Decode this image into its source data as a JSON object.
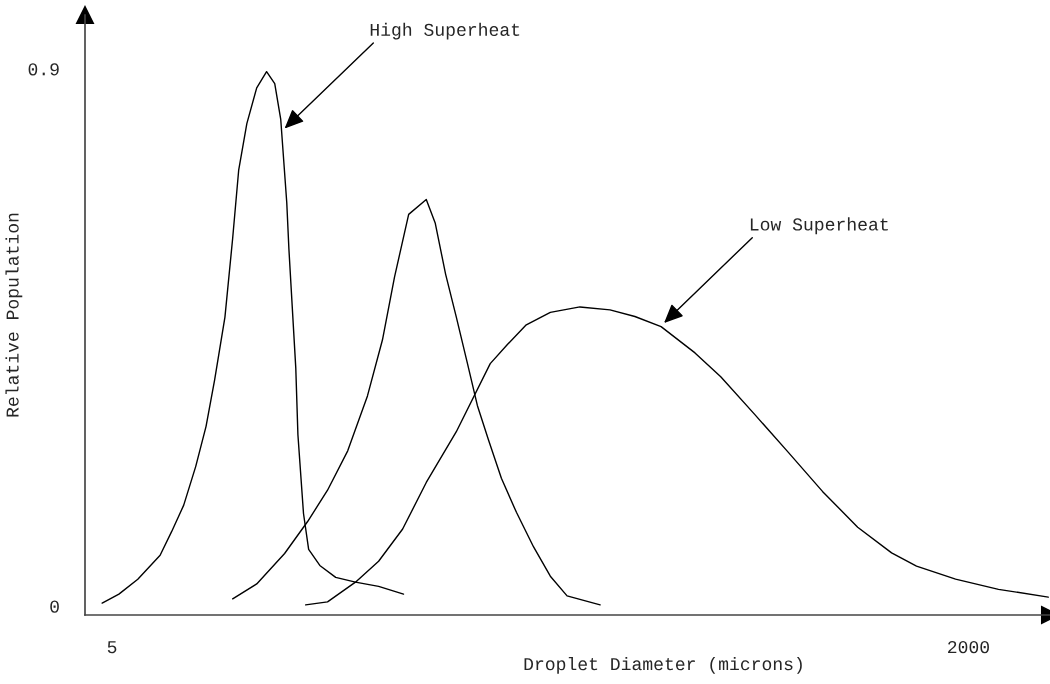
{
  "chart_data": {
    "type": "line",
    "xlabel": "Droplet Diameter (microns)",
    "ylabel": "Relative Population",
    "xlim": [
      -58,
      2190
    ],
    "ylim": [
      -0.015,
      0.99
    ],
    "xticks": [
      5,
      2000
    ],
    "yticks": [
      0,
      0.9
    ],
    "grid": false,
    "marker": "none",
    "line_style": "solid",
    "series": [
      {
        "color": "#000000",
        "x": [
          -18,
          21,
          65,
          117,
          144,
          172,
          200,
          224,
          244,
          268,
          286,
          300,
          319,
          342,
          365,
          384,
          398,
          412,
          417,
          433,
          438,
          451,
          463,
          489,
          526,
          572,
          626,
          684
        ],
        "values": [
          0.005,
          0.02,
          0.045,
          0.085,
          0.125,
          0.169,
          0.234,
          0.301,
          0.379,
          0.484,
          0.616,
          0.73,
          0.808,
          0.868,
          0.895,
          0.875,
          0.815,
          0.676,
          0.598,
          0.399,
          0.287,
          0.155,
          0.095,
          0.068,
          0.048,
          0.04,
          0.033,
          0.02
        ]
      },
      {
        "color": "#000000",
        "x": [
          286,
          342,
          407,
          461,
          507,
          554,
          600,
          635,
          663,
          696,
          737,
          758,
          782,
          807,
          833,
          856,
          882,
          912,
          947,
          987,
          1026,
          1065,
          1142
        ],
        "values": [
          0.012,
          0.037,
          0.088,
          0.142,
          0.194,
          0.26,
          0.352,
          0.446,
          0.551,
          0.656,
          0.681,
          0.641,
          0.556,
          0.484,
          0.406,
          0.336,
          0.278,
          0.214,
          0.157,
          0.099,
          0.05,
          0.017,
          0.002
        ]
      },
      {
        "color": "#000000",
        "x": [
          456,
          507,
          572,
          626,
          682,
          737,
          807,
          886,
          926,
          970,
          1026,
          1095,
          1165,
          1223,
          1284,
          1363,
          1423,
          1502,
          1581,
          1660,
          1742,
          1821,
          1879,
          1970,
          2070,
          2186
        ],
        "values": [
          0.002,
          0.007,
          0.04,
          0.075,
          0.129,
          0.207,
          0.292,
          0.406,
          0.438,
          0.471,
          0.492,
          0.501,
          0.496,
          0.485,
          0.468,
          0.424,
          0.384,
          0.321,
          0.257,
          0.192,
          0.132,
          0.089,
          0.067,
          0.045,
          0.028,
          0.015
        ]
      }
    ],
    "annotations": [
      {
        "text": "High Superheat",
        "x": 407,
        "y": 0.8
      },
      {
        "text": "Low Superheat",
        "x": 1291,
        "y": 0.474
      }
    ]
  }
}
